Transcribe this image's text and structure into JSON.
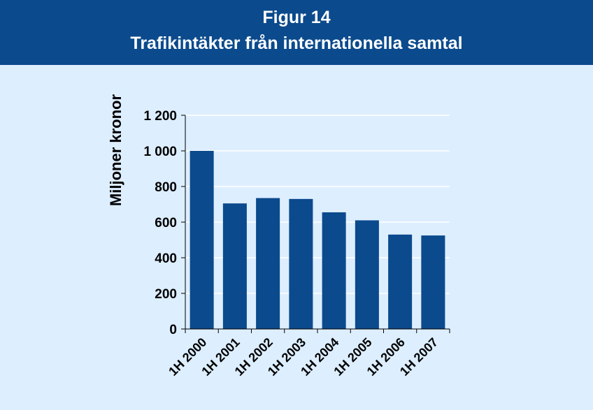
{
  "header": {
    "title": "Figur 14",
    "subtitle": "Trafikintäkter från internationella samtal"
  },
  "colors": {
    "header_bg": "#0b4a8c",
    "panel_bg": "#ddeeff",
    "bar": "#0b4a8c",
    "gridline": "#ffffff",
    "text": "#000000"
  },
  "chart_data": {
    "type": "bar",
    "title": "Trafikintäkter från internationella samtal",
    "xlabel": "",
    "ylabel": "Miljoner kronor",
    "categories": [
      "1H 2000",
      "1H 2001",
      "1H 2002",
      "1H 2003",
      "1H 2004",
      "1H 2005",
      "1H 2006",
      "1H 2007"
    ],
    "values": [
      1000,
      705,
      735,
      730,
      655,
      610,
      530,
      525
    ],
    "ylim": [
      0,
      1200
    ],
    "yticks": [
      0,
      200,
      400,
      600,
      800,
      1000,
      1200
    ],
    "ytick_labels": [
      "0",
      "200",
      "400",
      "600",
      "800",
      "1 000",
      "1 200"
    ],
    "grid": "horizontal",
    "legend": "none"
  }
}
